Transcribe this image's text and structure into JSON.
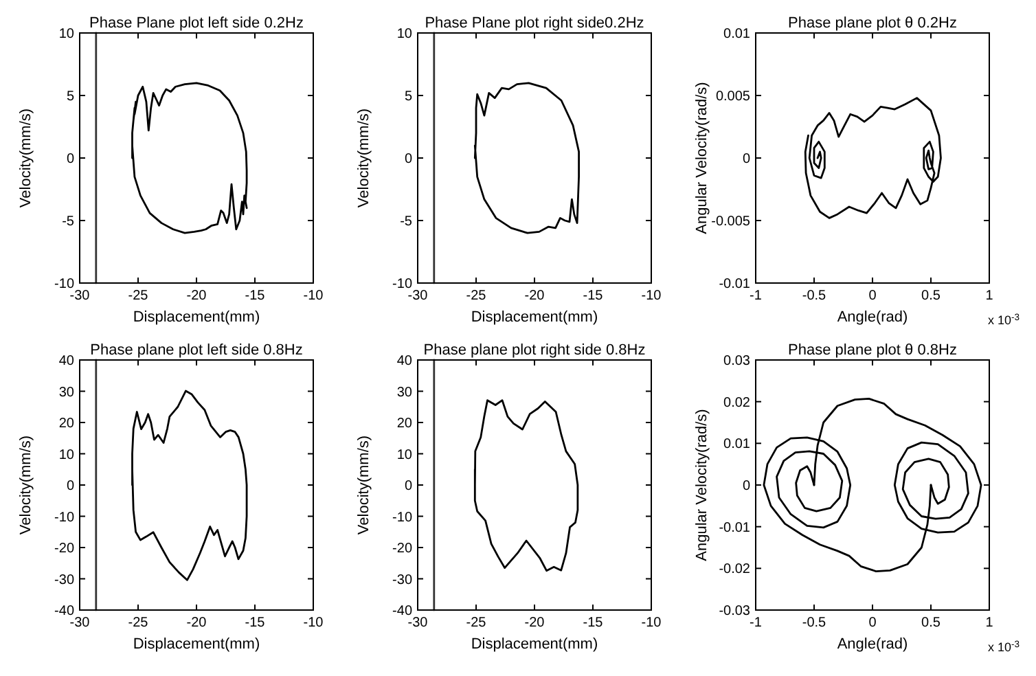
{
  "chart_data": [
    {
      "type": "line",
      "title": "Phase Plane plot left side 0.2Hz",
      "xlabel": "Displacement(mm)",
      "ylabel": "Velocity(mm/s)",
      "xlim": [
        -30,
        -10
      ],
      "ylim": [
        -10,
        10
      ],
      "xticks": [
        -30,
        -25,
        -20,
        -15,
        -10
      ],
      "yticks": [
        -10,
        -5,
        0,
        5,
        10
      ],
      "grid": false,
      "line_style": "solid",
      "marker": "none",
      "series": [
        {
          "color": "#333333",
          "x": [
            -28.6,
            -28.6
          ],
          "values": [
            -10,
            10
          ]
        },
        {
          "color": "#000000",
          "x": [
            -25.5,
            -25.5,
            -25.3,
            -25.4,
            -25.2,
            -25.3,
            -25,
            -24.6,
            -24.3,
            -24.1,
            -23.9,
            -23.7,
            -23.4,
            -23.2,
            -22.9,
            -22.6,
            -22.2,
            -21.8,
            -21,
            -20,
            -19,
            -18,
            -17.2,
            -16.5,
            -16,
            -15.75,
            -15.7,
            -15.7,
            -15.8,
            -15.7,
            -15.9,
            -16,
            -16.1,
            -16.3,
            -16.6,
            -16.8,
            -17,
            -17.2,
            -17.4,
            -17.7,
            -17.9,
            -18.2,
            -18.7,
            -19.2,
            -19.6,
            -20.2,
            -21,
            -22,
            -23,
            -24,
            -24.8,
            -25.3,
            -25.5
          ],
          "values": [
            0,
            2,
            4,
            3,
            4.5,
            3.5,
            5,
            5.7,
            4.5,
            2.2,
            4,
            5.2,
            4.6,
            4.2,
            5,
            5.5,
            5.3,
            5.7,
            5.9,
            6,
            5.8,
            5.4,
            4.6,
            3.4,
            2,
            0.5,
            -1,
            -2,
            -3.5,
            -4,
            -3,
            -4.5,
            -3.5,
            -5,
            -5.7,
            -4,
            -2.1,
            -4.5,
            -5.2,
            -4.4,
            -4.2,
            -5.3,
            -5.4,
            -5.7,
            -5.8,
            -5.9,
            -6,
            -5.7,
            -5.2,
            -4.4,
            -3,
            -1.5,
            1
          ]
        }
      ]
    },
    {
      "type": "line",
      "title": "Phase Plane plot right side0.2Hz",
      "xlabel": "Displacement(mm)",
      "ylabel": "Velocity(mm/s)",
      "xlim": [
        -30,
        -10
      ],
      "ylim": [
        -10,
        10
      ],
      "xticks": [
        -30,
        -25,
        -20,
        -15,
        -10
      ],
      "yticks": [
        -10,
        -5,
        0,
        5,
        10
      ],
      "grid": false,
      "line_style": "solid",
      "marker": "none",
      "series": [
        {
          "color": "#333333",
          "x": [
            -28.6,
            -28.6
          ],
          "values": [
            -10,
            10
          ]
        },
        {
          "color": "#000000",
          "x": [
            -25.1,
            -25,
            -25,
            -24.9,
            -24.6,
            -24.3,
            -23.9,
            -23.4,
            -22.8,
            -22.2,
            -21.5,
            -20.5,
            -19,
            -17.7,
            -16.7,
            -16.2,
            -16.2,
            -16.3,
            -16.35,
            -16.6,
            -16.8,
            -17,
            -17.4,
            -17.8,
            -18.2,
            -18.8,
            -19.6,
            -20.6,
            -22,
            -23.3,
            -24.3,
            -24.9,
            -25.1
          ],
          "values": [
            0,
            2,
            4,
            5.1,
            4.4,
            3.4,
            5.2,
            4.8,
            5.6,
            5.5,
            5.9,
            6,
            5.6,
            4.6,
            2.6,
            0.5,
            -1.5,
            -4,
            -5.2,
            -4.5,
            -3.3,
            -5.1,
            -5,
            -4.8,
            -5.6,
            -5.5,
            -5.9,
            -6,
            -5.6,
            -4.8,
            -3.3,
            -1.5,
            1
          ]
        }
      ]
    },
    {
      "type": "line",
      "title": "Phase plane plot  θ 0.2Hz",
      "xlabel": "Angle(rad)",
      "ylabel": "Angular Velocity(rad/s)",
      "annotations": [
        "x 10$^{-3}$"
      ],
      "xlim": [
        -1,
        1
      ],
      "ylim": [
        -0.01,
        0.01
      ],
      "xticks": [
        -1,
        -0.5,
        0,
        0.5,
        1
      ],
      "yticks": [
        -0.01,
        -0.005,
        0,
        0.005,
        0.01
      ],
      "grid": false,
      "line_style": "solid",
      "marker": "none",
      "series": [
        {
          "color": "#000000",
          "x": [
            -0.47,
            -0.45,
            -0.44,
            -0.46,
            -0.5,
            -0.5,
            -0.46,
            -0.41,
            -0.41,
            -0.44,
            -0.5,
            -0.54,
            -0.52,
            -0.47,
            -0.42,
            -0.37,
            -0.33,
            -0.29,
            -0.24,
            -0.19,
            -0.13,
            -0.07,
            0,
            0.07,
            0.13,
            0.19,
            0.28,
            0.38,
            0.5,
            0.57,
            0.585,
            0.56,
            0.52,
            0.48,
            0.44,
            0.44,
            0.49,
            0.52,
            0.51,
            0.48,
            0.46,
            0.48,
            0.49,
            0.5,
            0.53,
            0.5,
            0.47,
            0.41,
            0.35,
            0.3,
            0.25,
            0.2,
            0.14,
            0.08,
            0.02,
            -0.05,
            -0.12,
            -0.2,
            -0.3,
            -0.37,
            -0.45,
            -0.53,
            -0.57,
            -0.575,
            -0.55
          ],
          "values": [
            0,
            0.0005,
            0,
            -0.0008,
            -0.0004,
            0.0008,
            0.0013,
            0.0005,
            -0.0008,
            -0.0016,
            -0.0014,
            0,
            0.0018,
            0.0026,
            0.003,
            0.0036,
            0.003,
            0.0017,
            0.0026,
            0.0035,
            0.0033,
            0.0029,
            0.0034,
            0.0041,
            0.004,
            0.0039,
            0.0043,
            0.0048,
            0.0038,
            0.0018,
            0,
            -0.0015,
            -0.0019,
            -0.0015,
            -0.0008,
            0.0008,
            0.0013,
            0.0005,
            -0.0008,
            -0.0009,
            0,
            0.0006,
            0,
            -0.0004,
            -0.0012,
            -0.0024,
            -0.0034,
            -0.0037,
            -0.0028,
            -0.0017,
            -0.003,
            -0.004,
            -0.0036,
            -0.0028,
            -0.0036,
            -0.0044,
            -0.0042,
            -0.0039,
            -0.0045,
            -0.0048,
            -0.0043,
            -0.003,
            -0.0012,
            0.0005,
            0.0018
          ]
        }
      ]
    },
    {
      "type": "line",
      "title": "Phase plane plot left side 0.8Hz",
      "xlabel": "Displacement(mm)",
      "ylabel": "Velocity(mm/s)",
      "xlim": [
        -30,
        -10
      ],
      "ylim": [
        -40,
        40
      ],
      "xticks": [
        -30,
        -25,
        -20,
        -15,
        -10
      ],
      "yticks": [
        -40,
        -30,
        -20,
        -10,
        0,
        10,
        20,
        30,
        40
      ],
      "grid": false,
      "line_style": "solid",
      "marker": "none",
      "series": [
        {
          "color": "#333333",
          "x": [
            -28.6,
            -28.6
          ],
          "values": [
            -40,
            40
          ]
        },
        {
          "color": "#000000",
          "x": [
            -25.5,
            -25.5,
            -25.4,
            -25.1,
            -24.73,
            -24.4,
            -24.14,
            -23.9,
            -23.62,
            -23.28,
            -22.82,
            -22.5,
            -22.3,
            -21.6,
            -20.92,
            -20.4,
            -19.88,
            -19.3,
            -18.77,
            -17.97,
            -17.5,
            -17.1,
            -16.7,
            -16.4,
            -16.0,
            -15.8,
            -15.7,
            -15.7,
            -15.8,
            -16.0,
            -16.41,
            -16.7,
            -16.93,
            -17.2,
            -17.56,
            -18.2,
            -18.5,
            -18.84,
            -19.3,
            -19.7,
            -20.3,
            -20.8,
            -21.5,
            -22.3,
            -23.0,
            -23.7,
            -24.3,
            -24.8,
            -25.2,
            -25.4,
            -25.5
          ],
          "values": [
            0,
            10,
            18,
            23.4,
            17.9,
            20,
            22.7,
            20,
            14.5,
            16,
            13.5,
            18,
            21.9,
            25,
            30.1,
            29,
            26.4,
            24,
            19,
            15.3,
            17,
            17.5,
            17,
            15.3,
            10,
            5,
            0,
            -10,
            -17,
            -21,
            -23.7,
            -20,
            -18,
            -20,
            -22.8,
            -14.4,
            -16,
            -13.3,
            -18,
            -21.8,
            -27,
            -30.4,
            -28,
            -24.7,
            -20,
            -15.1,
            -16.5,
            -17.6,
            -15,
            -8,
            5
          ]
        }
      ]
    },
    {
      "type": "line",
      "title": "Phase plane plot right side 0.8Hz",
      "xlabel": "Displacement(mm)",
      "ylabel": "Velocity(mm/s)",
      "xlim": [
        -30,
        -10
      ],
      "ylim": [
        -40,
        40
      ],
      "xticks": [
        -30,
        -25,
        -20,
        -15,
        -10
      ],
      "yticks": [
        -40,
        -30,
        -20,
        -10,
        0,
        10,
        20,
        30,
        40
      ],
      "grid": false,
      "line_style": "solid",
      "marker": "none",
      "series": [
        {
          "color": "#333333",
          "x": [
            -28.6,
            -28.6
          ],
          "values": [
            -40,
            40
          ]
        },
        {
          "color": "#000000",
          "x": [
            -25.1,
            -25.07,
            -24.6,
            -24.3,
            -24.03,
            -23.34,
            -22.76,
            -22.3,
            -21.8,
            -21.03,
            -20.4,
            -19.7,
            -19.1,
            -18.17,
            -17.7,
            -17.3,
            -16.55,
            -16.3,
            -16.3,
            -16.5,
            -16.97,
            -17.3,
            -17.72,
            -18.34,
            -18.97,
            -19.55,
            -20.7,
            -21.45,
            -22.55,
            -23.1,
            -23.7,
            -24.2,
            -24.9,
            -25.1,
            -25.1
          ],
          "values": [
            0,
            10.8,
            15.3,
            22,
            27.1,
            25.6,
            27.1,
            21.9,
            19.7,
            17.8,
            22.7,
            24.5,
            26.7,
            23.4,
            16,
            10.8,
            6.7,
            0,
            -8,
            -12,
            -13.5,
            -21.8,
            -27.3,
            -26.2,
            -27.4,
            -23.3,
            -17.8,
            -21.8,
            -26.5,
            -23,
            -18.8,
            -11.4,
            -8.4,
            -5,
            5
          ]
        }
      ]
    },
    {
      "type": "line",
      "title": "Phase plane plot  θ 0.8Hz",
      "xlabel": "Angle(rad)",
      "ylabel": "Angular Velocity(rad/s)",
      "annotations": [
        "x 10$^{-3}$"
      ],
      "xlim": [
        -1,
        1
      ],
      "ylim": [
        -0.03,
        0.03
      ],
      "xticks": [
        -1,
        -0.5,
        0,
        0.5,
        1
      ],
      "yticks": [
        -0.03,
        -0.02,
        -0.01,
        0,
        0.01,
        0.02,
        0.03
      ],
      "grid": false,
      "line_style": "solid",
      "marker": "none",
      "series": [
        {
          "color": "#000000",
          "x": [
            -0.5,
            -0.49,
            -0.47,
            -0.42,
            -0.3,
            -0.15,
            -0.03,
            0.1,
            0.2,
            0.3,
            0.45,
            0.6,
            0.75,
            0.87,
            0.93,
            0.9,
            0.82,
            0.7,
            0.56,
            0.42,
            0.3,
            0.22,
            0.19,
            0.22,
            0.3,
            0.42,
            0.56,
            0.7,
            0.8,
            0.82,
            0.76,
            0.66,
            0.54,
            0.42,
            0.32,
            0.26,
            0.28,
            0.36,
            0.48,
            0.58,
            0.645,
            0.655,
            0.62,
            0.56,
            0.53,
            0.5
          ],
          "values": [
            0,
            0.005,
            0.0095,
            0.015,
            0.019,
            0.0205,
            0.0207,
            0.0195,
            0.017,
            0.0158,
            0.0143,
            0.012,
            0.0093,
            0.005,
            0,
            -0.005,
            -0.009,
            -0.0112,
            -0.0114,
            -0.0105,
            -0.008,
            -0.004,
            0,
            0.005,
            0.0088,
            0.0102,
            0.0098,
            0.007,
            0.003,
            -0.002,
            -0.0058,
            -0.0078,
            -0.0081,
            -0.0075,
            -0.0048,
            -0.001,
            0.003,
            0.0055,
            0.0063,
            0.0055,
            0.0025,
            -0.0005,
            -0.0035,
            -0.0045,
            -0.003,
            0
          ]
        },
        {
          "color": "#000000",
          "x": [
            0.5,
            0.49,
            0.47,
            0.42,
            0.3,
            0.15,
            0.03,
            -0.1,
            -0.2,
            -0.3,
            -0.45,
            -0.6,
            -0.75,
            -0.87,
            -0.93,
            -0.9,
            -0.82,
            -0.7,
            -0.56,
            -0.42,
            -0.3,
            -0.22,
            -0.19,
            -0.22,
            -0.3,
            -0.42,
            -0.56,
            -0.7,
            -0.8,
            -0.82,
            -0.76,
            -0.66,
            -0.54,
            -0.42,
            -0.32,
            -0.26,
            -0.28,
            -0.36,
            -0.48,
            -0.58,
            -0.645,
            -0.655,
            -0.62,
            -0.56,
            -0.53,
            -0.5
          ],
          "values": [
            0,
            -0.005,
            -0.0095,
            -0.015,
            -0.019,
            -0.0205,
            -0.0207,
            -0.0195,
            -0.017,
            -0.0158,
            -0.0143,
            -0.012,
            -0.0093,
            -0.005,
            0,
            0.005,
            0.009,
            0.0112,
            0.0114,
            0.0105,
            0.008,
            0.004,
            0,
            -0.005,
            -0.0088,
            -0.0102,
            -0.0098,
            -0.007,
            -0.003,
            0.002,
            0.0058,
            0.0078,
            0.0081,
            0.0075,
            0.0048,
            0.001,
            -0.003,
            -0.0055,
            -0.0063,
            -0.0055,
            -0.0025,
            0.0005,
            0.0035,
            0.0045,
            0.003,
            0
          ]
        }
      ]
    }
  ]
}
